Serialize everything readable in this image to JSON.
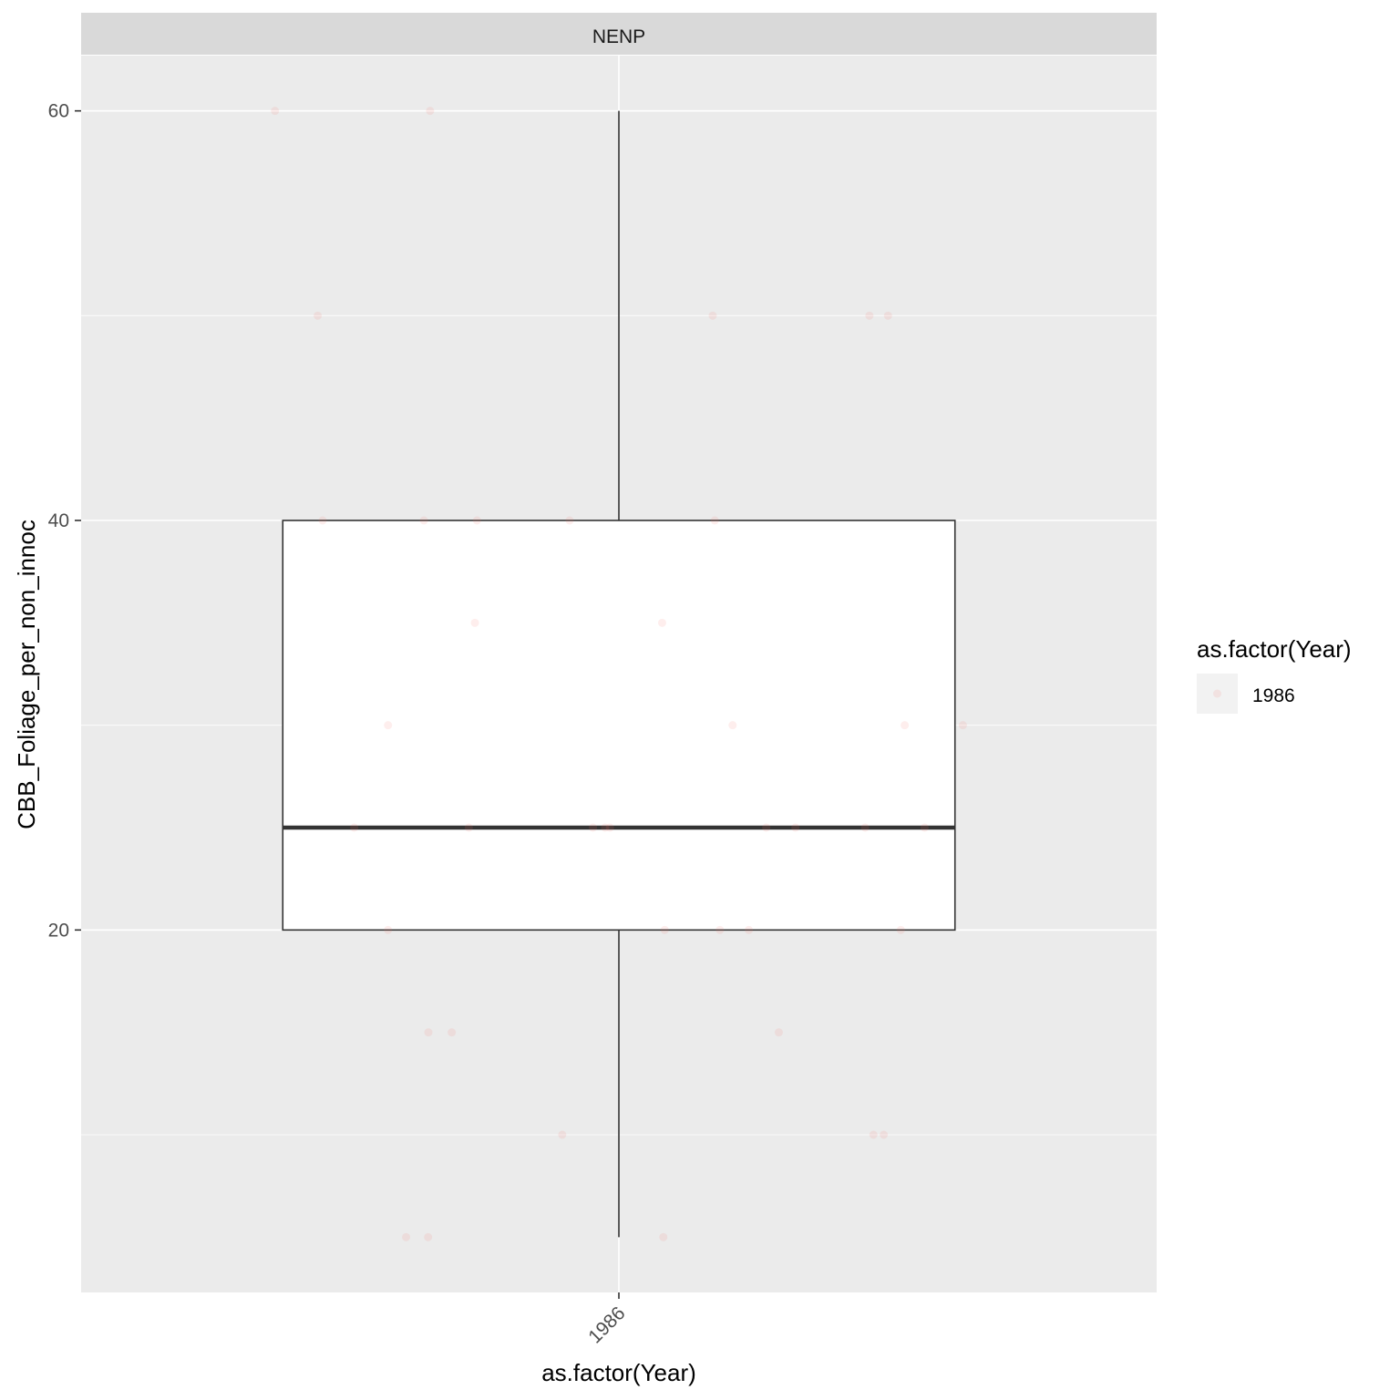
{
  "chart_data": {
    "type": "boxplot",
    "facet_label": "NENP",
    "xlabel": "as.factor(Year)",
    "ylabel": "CBB_Foliage_per_non_innoc",
    "categories": [
      "1986"
    ],
    "y_ticks": [
      20,
      40,
      60
    ],
    "ylim": [
      2.3,
      62.7
    ],
    "grid": true,
    "legend": {
      "title": "as.factor(Year)",
      "entries": [
        "1986"
      ],
      "position": "right"
    },
    "colors": {
      "panel": "#EBEBEB",
      "strip": "#D9D9D9",
      "point": "#F8766D",
      "box_line": "#333333"
    },
    "box": {
      "category": "1986",
      "lower_whisker": 5,
      "q1": 20,
      "median": 25,
      "q3": 40,
      "upper_whisker": 60
    },
    "points": [
      {
        "x": "1986",
        "y": 60
      },
      {
        "x": "1986",
        "y": 60
      },
      {
        "x": "1986",
        "y": 50
      },
      {
        "x": "1986",
        "y": 50
      },
      {
        "x": "1986",
        "y": 50
      },
      {
        "x": "1986",
        "y": 50
      },
      {
        "x": "1986",
        "y": 40
      },
      {
        "x": "1986",
        "y": 40
      },
      {
        "x": "1986",
        "y": 40
      },
      {
        "x": "1986",
        "y": 40
      },
      {
        "x": "1986",
        "y": 40
      },
      {
        "x": "1986",
        "y": 35
      },
      {
        "x": "1986",
        "y": 35
      },
      {
        "x": "1986",
        "y": 30
      },
      {
        "x": "1986",
        "y": 30
      },
      {
        "x": "1986",
        "y": 30
      },
      {
        "x": "1986",
        "y": 30
      },
      {
        "x": "1986",
        "y": 25
      },
      {
        "x": "1986",
        "y": 25
      },
      {
        "x": "1986",
        "y": 25
      },
      {
        "x": "1986",
        "y": 25
      },
      {
        "x": "1986",
        "y": 25
      },
      {
        "x": "1986",
        "y": 25
      },
      {
        "x": "1986",
        "y": 25
      },
      {
        "x": "1986",
        "y": 25
      },
      {
        "x": "1986",
        "y": 25
      },
      {
        "x": "1986",
        "y": 20
      },
      {
        "x": "1986",
        "y": 20
      },
      {
        "x": "1986",
        "y": 20
      },
      {
        "x": "1986",
        "y": 20
      },
      {
        "x": "1986",
        "y": 20
      },
      {
        "x": "1986",
        "y": 15
      },
      {
        "x": "1986",
        "y": 15
      },
      {
        "x": "1986",
        "y": 15
      },
      {
        "x": "1986",
        "y": 10
      },
      {
        "x": "1986",
        "y": 10
      },
      {
        "x": "1986",
        "y": 10
      },
      {
        "x": "1986",
        "y": 5
      },
      {
        "x": "1986",
        "y": 5
      },
      {
        "x": "1986",
        "y": 5
      }
    ]
  }
}
